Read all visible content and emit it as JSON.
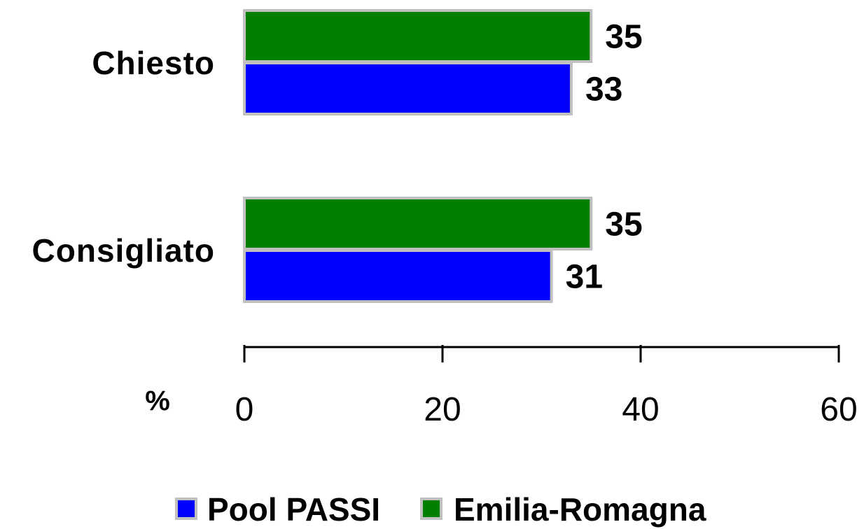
{
  "chart_data": {
    "type": "bar",
    "orientation": "horizontal",
    "categories": [
      "Chiesto",
      "Consigliato"
    ],
    "series": [
      {
        "name": "Pool PASSI",
        "color": "#0000FF",
        "values": [
          33,
          31
        ]
      },
      {
        "name": "Emilia-Romagna",
        "color": "#008000",
        "values": [
          35,
          35
        ]
      }
    ],
    "x_axis": {
      "ticks": [
        0,
        20,
        40,
        60
      ],
      "xlim": [
        0,
        60
      ],
      "unit_label": "%"
    },
    "data_labels": true,
    "legend": {
      "position": "bottom"
    },
    "grid": false,
    "bar_border_color": "#C0C0C0"
  }
}
